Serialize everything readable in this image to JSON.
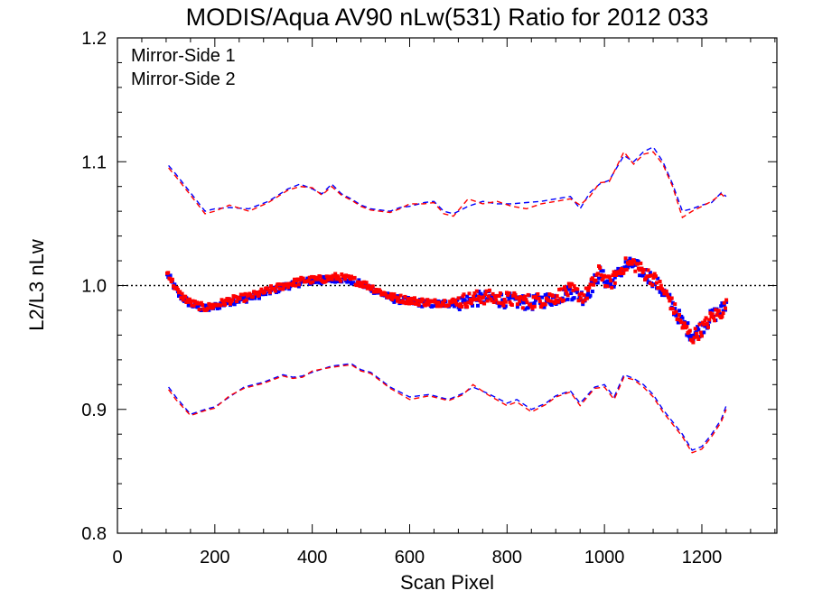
{
  "chart_data": {
    "type": "scatter",
    "title": "MODIS/Aqua AV90 nLw(531) Ratio for 2012 033",
    "xlabel": "Scan Pixel",
    "ylabel": "L2/L3 nLw",
    "xlim": [
      0,
      1354
    ],
    "ylim": [
      0.8,
      1.2
    ],
    "xticks": [
      0,
      200,
      400,
      600,
      800,
      1000,
      1200
    ],
    "xtick_labels": [
      "0",
      "200",
      "400",
      "600",
      "800",
      "1000",
      "1200"
    ],
    "yticks": [
      0.8,
      0.9,
      1.0,
      1.1,
      1.2
    ],
    "ytick_labels": [
      "0.8",
      "0.9",
      "1.0",
      "1.1",
      "1.2"
    ],
    "reference_line": 1.0,
    "legend_position": "top-left",
    "colors": {
      "ms1": "#0000ff",
      "ms2": "#ff0000",
      "reference": "#000000"
    },
    "series": [
      {
        "name": "Mirror-Side 1",
        "color": "#0000ff",
        "mean_x": [
          105,
          110,
          125,
          150,
          180,
          200,
          230,
          270,
          310,
          350,
          380,
          420,
          450,
          480,
          520,
          560,
          600,
          650,
          700,
          750,
          800,
          850,
          900,
          930,
          960,
          990,
          1010,
          1040,
          1060,
          1080,
          1100,
          1130,
          1160,
          1180,
          1200,
          1220,
          1240,
          1250
        ],
        "mean_y": [
          1.008,
          1.004,
          0.993,
          0.985,
          0.981,
          0.983,
          0.987,
          0.99,
          0.995,
          1.0,
          1.003,
          1.004,
          1.006,
          1.004,
          0.998,
          0.99,
          0.987,
          0.985,
          0.986,
          0.99,
          0.988,
          0.986,
          0.99,
          0.995,
          0.99,
          1.01,
          1.0,
          1.015,
          1.017,
          1.01,
          1.005,
          0.99,
          0.97,
          0.96,
          0.966,
          0.975,
          0.98,
          0.985
        ],
        "upper_x": [
          105,
          120,
          150,
          180,
          200,
          230,
          270,
          310,
          350,
          375,
          400,
          420,
          440,
          460,
          480,
          500,
          520,
          560,
          580,
          600,
          630,
          650,
          670,
          690,
          720,
          750,
          780,
          810,
          840,
          870,
          900,
          930,
          950,
          970,
          990,
          1010,
          1040,
          1060,
          1080,
          1100,
          1120,
          1140,
          1160,
          1180,
          1200,
          1220,
          1240,
          1250
        ],
        "upper_y": [
          1.097,
          1.09,
          1.075,
          1.06,
          1.062,
          1.063,
          1.062,
          1.068,
          1.078,
          1.082,
          1.078,
          1.074,
          1.082,
          1.074,
          1.07,
          1.065,
          1.062,
          1.06,
          1.063,
          1.064,
          1.067,
          1.068,
          1.06,
          1.058,
          1.064,
          1.068,
          1.066,
          1.066,
          1.067,
          1.068,
          1.07,
          1.072,
          1.062,
          1.075,
          1.082,
          1.085,
          1.105,
          1.1,
          1.108,
          1.112,
          1.1,
          1.082,
          1.06,
          1.062,
          1.065,
          1.067,
          1.075,
          1.072
        ],
        "lower_x": [
          105,
          120,
          150,
          180,
          200,
          230,
          260,
          300,
          340,
          360,
          380,
          400,
          440,
          480,
          500,
          520,
          560,
          600,
          640,
          680,
          710,
          730,
          760,
          800,
          820,
          850,
          880,
          900,
          930,
          950,
          980,
          1000,
          1020,
          1040,
          1060,
          1080,
          1100,
          1120,
          1140,
          1160,
          1180,
          1200,
          1220,
          1240,
          1250
        ],
        "lower_y": [
          0.918,
          0.91,
          0.896,
          0.9,
          0.902,
          0.91,
          0.918,
          0.922,
          0.928,
          0.926,
          0.927,
          0.93,
          0.935,
          0.937,
          0.932,
          0.93,
          0.918,
          0.91,
          0.912,
          0.908,
          0.913,
          0.918,
          0.913,
          0.905,
          0.908,
          0.9,
          0.905,
          0.911,
          0.915,
          0.905,
          0.918,
          0.92,
          0.91,
          0.928,
          0.925,
          0.92,
          0.912,
          0.9,
          0.89,
          0.88,
          0.867,
          0.87,
          0.88,
          0.892,
          0.903
        ]
      },
      {
        "name": "Mirror-Side 2",
        "color": "#ff0000",
        "mean_x": [
          105,
          110,
          125,
          150,
          180,
          200,
          230,
          270,
          310,
          350,
          380,
          420,
          450,
          480,
          520,
          560,
          600,
          650,
          700,
          750,
          800,
          850,
          900,
          930,
          960,
          990,
          1010,
          1040,
          1060,
          1080,
          1100,
          1130,
          1160,
          1180,
          1200,
          1220,
          1240,
          1250
        ],
        "mean_y": [
          1.01,
          1.005,
          0.994,
          0.986,
          0.982,
          0.984,
          0.988,
          0.991,
          0.996,
          1.001,
          1.004,
          1.005,
          1.007,
          1.005,
          0.999,
          0.991,
          0.988,
          0.986,
          0.987,
          0.991,
          0.989,
          0.987,
          0.991,
          0.996,
          0.991,
          1.011,
          1.001,
          1.016,
          1.018,
          1.011,
          1.006,
          0.991,
          0.968,
          0.958,
          0.965,
          0.974,
          0.979,
          0.984
        ],
        "upper_x": [
          105,
          120,
          150,
          180,
          200,
          230,
          270,
          310,
          350,
          375,
          400,
          420,
          440,
          460,
          480,
          500,
          520,
          560,
          580,
          600,
          630,
          650,
          670,
          690,
          720,
          750,
          780,
          810,
          840,
          870,
          900,
          930,
          950,
          970,
          990,
          1010,
          1040,
          1060,
          1080,
          1100,
          1120,
          1140,
          1160,
          1180,
          1200,
          1220,
          1240,
          1250
        ],
        "upper_y": [
          1.095,
          1.088,
          1.073,
          1.058,
          1.06,
          1.065,
          1.06,
          1.067,
          1.077,
          1.08,
          1.079,
          1.073,
          1.08,
          1.073,
          1.069,
          1.064,
          1.061,
          1.059,
          1.062,
          1.066,
          1.066,
          1.067,
          1.058,
          1.056,
          1.07,
          1.066,
          1.068,
          1.064,
          1.062,
          1.066,
          1.068,
          1.07,
          1.065,
          1.072,
          1.083,
          1.084,
          1.108,
          1.098,
          1.106,
          1.108,
          1.098,
          1.08,
          1.055,
          1.06,
          1.064,
          1.068,
          1.074,
          1.07
        ],
        "lower_x": [
          105,
          120,
          150,
          180,
          200,
          230,
          260,
          300,
          340,
          360,
          380,
          400,
          440,
          480,
          500,
          520,
          560,
          600,
          640,
          680,
          710,
          730,
          760,
          800,
          820,
          850,
          880,
          900,
          930,
          950,
          980,
          1000,
          1020,
          1040,
          1060,
          1080,
          1100,
          1120,
          1140,
          1160,
          1180,
          1200,
          1220,
          1240,
          1250
        ],
        "lower_y": [
          0.916,
          0.908,
          0.895,
          0.899,
          0.901,
          0.911,
          0.917,
          0.921,
          0.927,
          0.925,
          0.926,
          0.931,
          0.934,
          0.936,
          0.931,
          0.929,
          0.917,
          0.908,
          0.911,
          0.907,
          0.912,
          0.92,
          0.912,
          0.903,
          0.906,
          0.898,
          0.904,
          0.91,
          0.914,
          0.903,
          0.917,
          0.918,
          0.908,
          0.926,
          0.924,
          0.918,
          0.91,
          0.898,
          0.888,
          0.878,
          0.865,
          0.868,
          0.878,
          0.89,
          0.9
        ]
      }
    ]
  }
}
